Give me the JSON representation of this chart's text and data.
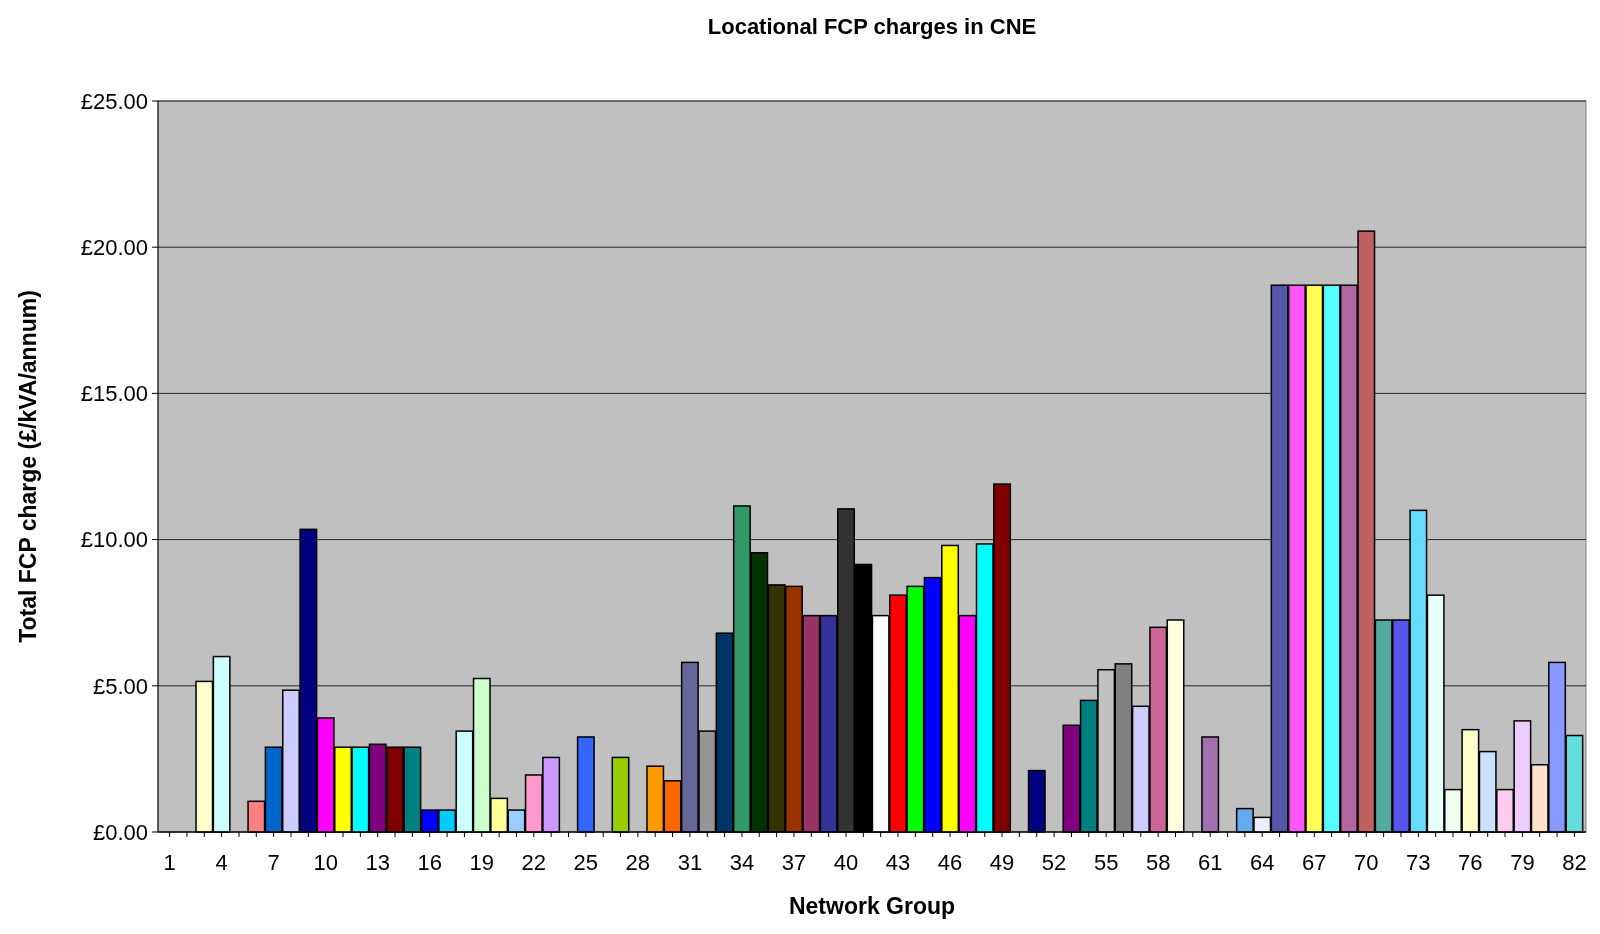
{
  "chart_data": {
    "type": "bar",
    "title": "Locational FCP charges in CNE",
    "xlabel": "Network Group",
    "ylabel": "Total FCP charge (£/kVA/annum)",
    "categories": [
      "1",
      null,
      null,
      "4",
      null,
      null,
      "7",
      null,
      null,
      "10",
      null,
      null,
      "13",
      null,
      null,
      "16",
      null,
      null,
      "19",
      null,
      null,
      "22",
      null,
      null,
      "25",
      null,
      null,
      "28",
      null,
      null,
      "31",
      null,
      null,
      "34",
      null,
      null,
      "37",
      null,
      null,
      "40",
      null,
      null,
      "43",
      null,
      null,
      "46",
      null,
      null,
      "49",
      null,
      null,
      "52",
      null,
      null,
      "55",
      null,
      null,
      "58",
      null,
      null,
      "61",
      null,
      null,
      "64",
      null,
      null,
      "67",
      null,
      null,
      "70",
      null,
      null,
      "73",
      null,
      null,
      "76",
      null,
      null,
      "79",
      null,
      null,
      "82"
    ],
    "values": [
      null,
      null,
      5.15,
      6.0,
      null,
      1.05,
      2.9,
      4.85,
      10.35,
      3.9,
      2.9,
      2.9,
      3.0,
      2.9,
      2.9,
      0.75,
      0.75,
      3.45,
      5.25,
      1.15,
      0.75,
      1.95,
      2.55,
      null,
      3.25,
      null,
      2.55,
      null,
      2.25,
      1.75,
      5.8,
      3.45,
      6.8,
      11.15,
      9.55,
      8.45,
      8.4,
      7.4,
      7.4,
      11.05,
      9.15,
      7.4,
      8.1,
      8.4,
      8.7,
      9.8,
      7.4,
      9.85,
      11.9,
      null,
      2.1,
      null,
      3.65,
      4.5,
      5.55,
      5.75,
      4.3,
      7.0,
      7.25,
      null,
      3.25,
      null,
      0.8,
      0.5,
      18.7,
      18.7,
      18.7,
      18.7,
      18.7,
      20.55,
      7.25,
      7.25,
      11.0,
      8.1,
      1.45,
      3.5,
      2.75,
      1.45,
      3.8,
      2.3,
      5.8,
      3.3
    ],
    "colors": [
      null,
      null,
      "#ffffcc",
      "#ccffff",
      null,
      "#ff8080",
      "#0066cc",
      "#ccccff",
      "#000080",
      "#ff00ff",
      "#ffff00",
      "#00ffff",
      "#800080",
      "#800000",
      "#008080",
      "#0000ff",
      "#00ccff",
      "#ccffff",
      "#ccffcc",
      "#ffff99",
      "#99ccff",
      "#ff99cc",
      "#cc99ff",
      null,
      "#3366ff",
      null,
      "#99cc00",
      null,
      "#ff9900",
      "#ff6600",
      "#666699",
      "#969696",
      "#003366",
      "#339966",
      "#003300",
      "#333300",
      "#993300",
      "#993366",
      "#333399",
      "#333333",
      "#000000",
      "#ffffff",
      "#ff0000",
      "#00ff00",
      "#0000ff",
      "#ffff00",
      "#ff00ff",
      "#00ffff",
      "#800000",
      null,
      "#000080",
      null,
      "#800080",
      "#008080",
      "#c0c0c0",
      "#808080",
      "#ccccff",
      "#cc6699",
      "#ffffe0",
      null,
      "#a070b0",
      null,
      "#66aaee",
      "#eeeeff",
      "#5555aa",
      "#ff55ff",
      "#ffff55",
      "#55ffff",
      "#b066a0",
      "#c06060",
      "#55aaa0",
      "#5555ee",
      "#66ddff",
      "#e8ffff",
      "#eeffee",
      "#ffffcc",
      "#cce0ff",
      "#ffccee",
      "#eeccff",
      "#ffe0cc",
      "#8899ff",
      "#66dddd"
    ],
    "ylim": [
      0,
      25
    ],
    "yticks": [
      {
        "value": 0,
        "label": "£0.00"
      },
      {
        "value": 5,
        "label": "£5.00"
      },
      {
        "value": 10,
        "label": "£10.00"
      },
      {
        "value": 15,
        "label": "£15.00"
      },
      {
        "value": 20,
        "label": "£20.00"
      },
      {
        "value": 25,
        "label": "£25.00"
      }
    ],
    "grid": "y"
  }
}
